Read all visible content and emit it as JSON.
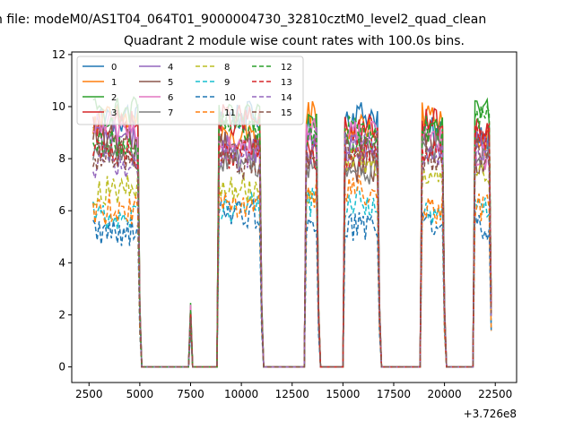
{
  "chart_data": {
    "type": "line",
    "suptitle": "n file: modeM0/AS1T04_064T01_9000004730_32810cztM0_level2_quad_clean",
    "title": "Quadrant 2 module wise count rates with 100.0s bins.",
    "xlabel": "",
    "ylabel": "",
    "x_offset_label": "+3.726e8",
    "xlim": [
      1650,
      23550
    ],
    "ylim": [
      -0.6,
      12.1
    ],
    "xticks": [
      2500,
      5000,
      7500,
      10000,
      12500,
      15000,
      17500,
      20000,
      22500
    ],
    "xtick_labels": [
      "2500",
      "5000",
      "7500",
      "10000",
      "12500",
      "15000",
      "17500",
      "20000",
      "22500"
    ],
    "yticks": [
      0,
      2,
      4,
      6,
      8,
      10,
      12
    ],
    "ytick_labels": [
      "0",
      "2",
      "4",
      "6",
      "8",
      "10",
      "12"
    ],
    "legend_position": "upper-left",
    "legend_columns": 4,
    "segments": [
      {
        "start": 2700,
        "end": 5000
      },
      {
        "start": 7500,
        "end": 7550
      },
      {
        "start": 8900,
        "end": 11000
      },
      {
        "start": 13200,
        "end": 13800
      },
      {
        "start": 15100,
        "end": 16800
      },
      {
        "start": 18900,
        "end": 20000
      },
      {
        "start": 21500,
        "end": 22300
      }
    ],
    "series": [
      {
        "name": "0",
        "level": 9.0,
        "color": "#1f77b4",
        "dashed": false
      },
      {
        "name": "1",
        "level": 8.9,
        "color": "#ff7f0e",
        "dashed": false
      },
      {
        "name": "2",
        "level": 9.1,
        "color": "#2ca02c",
        "dashed": false
      },
      {
        "name": "3",
        "level": 8.6,
        "color": "#d62728",
        "dashed": false
      },
      {
        "name": "4",
        "level": 8.2,
        "color": "#9467bd",
        "dashed": false
      },
      {
        "name": "5",
        "level": 8.0,
        "color": "#8c564b",
        "dashed": false
      },
      {
        "name": "6",
        "level": 8.4,
        "color": "#e377c2",
        "dashed": false
      },
      {
        "name": "7",
        "level": 7.5,
        "color": "#7f7f7f",
        "dashed": false
      },
      {
        "name": "8",
        "level": 7.1,
        "color": "#bcbd22",
        "dashed": true
      },
      {
        "name": "9",
        "level": 6.0,
        "color": "#17becf",
        "dashed": true
      },
      {
        "name": "10",
        "level": 5.4,
        "color": "#1f77b4",
        "dashed": true
      },
      {
        "name": "11",
        "level": 6.2,
        "color": "#ff7f0e",
        "dashed": true
      },
      {
        "name": "12",
        "level": 8.7,
        "color": "#2ca02c",
        "dashed": true
      },
      {
        "name": "13",
        "level": 8.3,
        "color": "#d62728",
        "dashed": true
      },
      {
        "name": "14",
        "level": 7.8,
        "color": "#9467bd",
        "dashed": true
      },
      {
        "name": "15",
        "level": 8.1,
        "color": "#8c564b",
        "dashed": true
      }
    ]
  }
}
